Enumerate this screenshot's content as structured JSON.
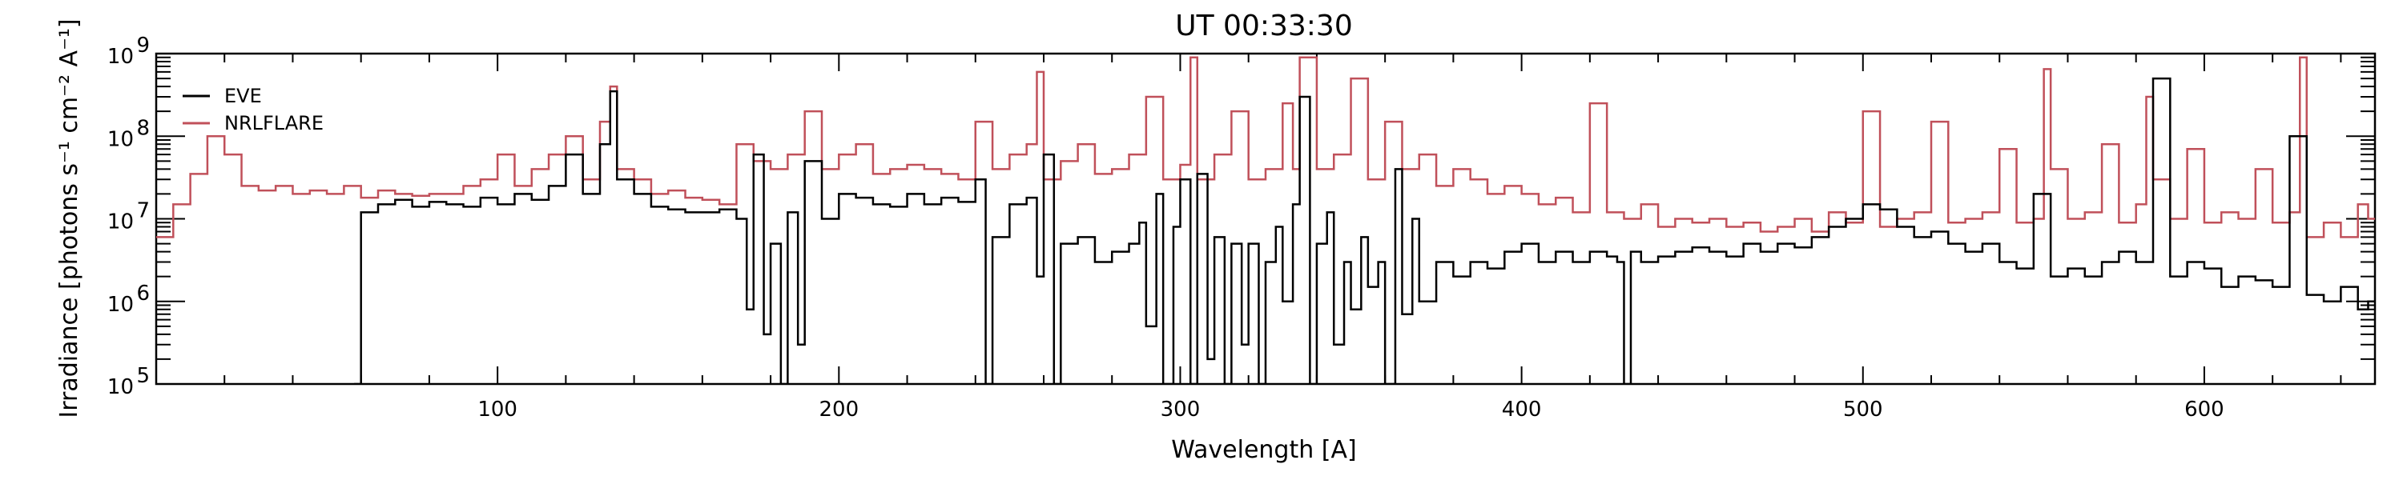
{
  "chart_data": {
    "type": "line",
    "title": "UT 00:33:30",
    "xlabel": "Wavelength [A]",
    "ylabel": "Irradiance [photons s⁻¹ cm⁻² A⁻¹]",
    "xlim": [
      0,
      650
    ],
    "ylim": [
      100000,
      1000000000
    ],
    "yscale": "log",
    "step": true,
    "legend_position": "top-left",
    "xticks": [
      100,
      200,
      300,
      400,
      500,
      600
    ],
    "xtick_labels": [
      "100",
      "200",
      "300",
      "400",
      "500",
      "600"
    ],
    "ytick_labels": [
      "10",
      "10",
      "10",
      "10",
      "10"
    ],
    "ytick_exponents": [
      "5",
      "6",
      "7",
      "8",
      "9"
    ],
    "series": [
      {
        "name": "EVE",
        "color": "#000000",
        "x": [
          58,
          60,
          65,
          70,
          75,
          80,
          85,
          90,
          95,
          100,
          105,
          110,
          115,
          120,
          125,
          130,
          133,
          135,
          140,
          145,
          150,
          155,
          160,
          165,
          170,
          173,
          175,
          178,
          180,
          183,
          185,
          188,
          190,
          195,
          200,
          205,
          210,
          215,
          220,
          225,
          230,
          235,
          240,
          243,
          245,
          250,
          255,
          258,
          260,
          263,
          265,
          270,
          275,
          280,
          285,
          288,
          290,
          293,
          295,
          298,
          300,
          303,
          305,
          308,
          310,
          313,
          315,
          318,
          320,
          323,
          325,
          328,
          330,
          333,
          335,
          338,
          340,
          343,
          345,
          348,
          350,
          353,
          355,
          358,
          360,
          363,
          365,
          368,
          370,
          375,
          380,
          385,
          390,
          395,
          400,
          405,
          410,
          415,
          420,
          425,
          428,
          430,
          432,
          435,
          440,
          445,
          450,
          455,
          460,
          465,
          470,
          475,
          480,
          485,
          490,
          495,
          500,
          505,
          510,
          515,
          520,
          525,
          530,
          535,
          540,
          545,
          550,
          555,
          560,
          565,
          570,
          575,
          580,
          585,
          590,
          595,
          600,
          605,
          610,
          615,
          620,
          625,
          630,
          635,
          640,
          645,
          648
        ],
        "values": [
          100000,
          12000000,
          15000000,
          17000000,
          14000000,
          16000000,
          15000000,
          14000000,
          18000000,
          15000000,
          20000000,
          17000000,
          25000000,
          60000000,
          20000000,
          80000000,
          350000000,
          30000000,
          20000000,
          14000000,
          13000000,
          12000000,
          12000000,
          13000000,
          10000000,
          800000,
          60000000,
          400000,
          5000000,
          100000,
          12000000,
          300000,
          50000000,
          10000000,
          20000000,
          18000000,
          15000000,
          14000000,
          20000000,
          15000000,
          18000000,
          16000000,
          30000000,
          100000,
          6000000,
          15000000,
          18000000,
          2000000,
          60000000,
          100000,
          5000000,
          6000000,
          3000000,
          4000000,
          5000000,
          9000000,
          500000,
          20000000,
          100000,
          8000000,
          30000000,
          100000,
          35000000,
          200000,
          6000000,
          100000,
          5000000,
          300000,
          5000000,
          100000,
          3000000,
          8000000,
          1000000,
          15000000,
          300000000,
          100000,
          5000000,
          12000000,
          300000,
          3000000,
          800000,
          6000000,
          1500000,
          3000000,
          100000,
          40000000,
          700000,
          10000000,
          1000000,
          3000000,
          2000000,
          3000000,
          2500000,
          4000000,
          5000000,
          3000000,
          4000000,
          3000000,
          4000000,
          3500000,
          3000000,
          100000,
          4000000,
          3000000,
          3500000,
          4000000,
          4500000,
          4000000,
          3500000,
          5000000,
          4000000,
          5000000,
          4500000,
          6000000,
          8000000,
          10000000,
          15000000,
          13000000,
          8000000,
          6000000,
          7000000,
          5000000,
          4000000,
          5000000,
          3000000,
          2500000,
          20000000,
          2000000,
          2500000,
          2000000,
          3000000,
          4000000,
          3000000,
          500000000,
          2000000,
          3000000,
          2500000,
          1500000,
          2000000,
          1800000,
          1500000,
          100000000,
          1200000,
          1000000,
          1500000,
          800000,
          1000000
        ]
      },
      {
        "name": "NRLFLARE",
        "color": "#c0505a",
        "x": [
          0,
          5,
          10,
          15,
          20,
          25,
          30,
          35,
          40,
          45,
          50,
          55,
          60,
          65,
          70,
          75,
          80,
          85,
          90,
          95,
          100,
          105,
          110,
          115,
          120,
          125,
          130,
          133,
          135,
          140,
          145,
          150,
          155,
          160,
          165,
          170,
          175,
          180,
          185,
          190,
          195,
          200,
          205,
          210,
          215,
          220,
          225,
          230,
          235,
          240,
          245,
          250,
          255,
          258,
          260,
          265,
          270,
          275,
          280,
          285,
          290,
          295,
          300,
          303,
          305,
          310,
          315,
          320,
          325,
          330,
          333,
          335,
          340,
          345,
          350,
          355,
          360,
          365,
          370,
          375,
          380,
          385,
          390,
          395,
          400,
          405,
          410,
          415,
          420,
          425,
          430,
          435,
          440,
          445,
          450,
          455,
          460,
          465,
          470,
          475,
          480,
          485,
          490,
          495,
          500,
          505,
          510,
          515,
          520,
          525,
          530,
          535,
          540,
          545,
          550,
          553,
          555,
          560,
          565,
          570,
          575,
          580,
          583,
          585,
          590,
          595,
          600,
          605,
          610,
          615,
          620,
          625,
          628,
          630,
          635,
          640,
          645,
          648
        ],
        "values": [
          6000000,
          15000000,
          35000000,
          100000000,
          60000000,
          25000000,
          22000000,
          25000000,
          20000000,
          22000000,
          20000000,
          25000000,
          18000000,
          22000000,
          20000000,
          19000000,
          20000000,
          20000000,
          25000000,
          30000000,
          60000000,
          25000000,
          40000000,
          60000000,
          100000000,
          30000000,
          150000000,
          400000000,
          40000000,
          30000000,
          20000000,
          22000000,
          18000000,
          17000000,
          15000000,
          80000000,
          50000000,
          40000000,
          60000000,
          200000000,
          40000000,
          60000000,
          80000000,
          35000000,
          40000000,
          45000000,
          40000000,
          35000000,
          30000000,
          150000000,
          40000000,
          60000000,
          80000000,
          600000000,
          30000000,
          50000000,
          80000000,
          35000000,
          40000000,
          60000000,
          300000000,
          30000000,
          45000000,
          900000000,
          30000000,
          60000000,
          200000000,
          30000000,
          40000000,
          250000000,
          40000000,
          900000000,
          40000000,
          60000000,
          500000000,
          30000000,
          150000000,
          40000000,
          60000000,
          25000000,
          40000000,
          30000000,
          20000000,
          25000000,
          20000000,
          15000000,
          18000000,
          12000000,
          250000000,
          12000000,
          10000000,
          15000000,
          8000000,
          10000000,
          9000000,
          10000000,
          8000000,
          9000000,
          7000000,
          8000000,
          10000000,
          7000000,
          12000000,
          9000000,
          200000000,
          8000000,
          10000000,
          12000000,
          150000000,
          9000000,
          10000000,
          12000000,
          70000000,
          9000000,
          10000000,
          650000000,
          40000000,
          10000000,
          12000000,
          80000000,
          9000000,
          15000000,
          300000000,
          30000000,
          10000000,
          70000000,
          9000000,
          12000000,
          10000000,
          40000000,
          9000000,
          12000000,
          900000000,
          6000000,
          9000000,
          6000000,
          15000000,
          10000000
        ]
      }
    ]
  }
}
